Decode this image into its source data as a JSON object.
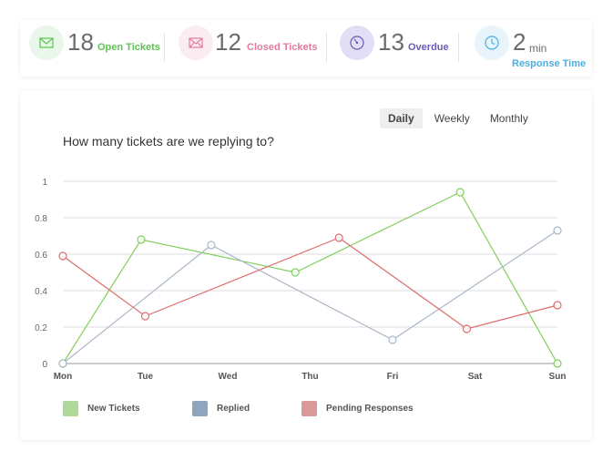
{
  "stats": [
    {
      "value": "18",
      "label": "Open Tickets",
      "icon": "envelope-open-icon",
      "color": "#5cc451",
      "bg": "#e9f6ea"
    },
    {
      "value": "12",
      "label": "Closed Tickets",
      "icon": "envelope-icon",
      "color": "#e47aa0",
      "bg": "#fbecf1"
    },
    {
      "value": "13",
      "label": "Overdue",
      "icon": "speedometer-icon",
      "color": "#6a5bb5",
      "bg": "#e2def5"
    },
    {
      "value": "2",
      "unit": "min",
      "label": "Response Time",
      "icon": "clock-icon",
      "color": "#49aee3",
      "bg": "#e8f4fb"
    }
  ],
  "tabs": [
    "Daily",
    "Weekly",
    "Monthly"
  ],
  "active_tab": "Daily",
  "chart_data": {
    "type": "line",
    "title": "How many tickets are we replying to?",
    "categories": [
      "Mon",
      "Tue",
      "Wed",
      "Thu",
      "Fri",
      "Sat",
      "Sun"
    ],
    "ylim": [
      0,
      1
    ],
    "yticks": [
      "0",
      "0.2",
      "0.4",
      "0.6",
      "0.8",
      "1"
    ],
    "grid": true,
    "legend_position": "bottom-left",
    "series": [
      {
        "name": "New Tickets",
        "color": "#7fd05a",
        "swatch": "#afd89b",
        "points": [
          [
            0,
            0
          ],
          [
            0.95,
            0.68
          ],
          [
            2.82,
            0.5
          ],
          [
            4.82,
            0.94
          ],
          [
            6,
            0
          ]
        ]
      },
      {
        "name": "Replied",
        "color": "#a9b6c9",
        "swatch": "#8ea4bf",
        "points": [
          [
            0,
            0
          ],
          [
            1.8,
            0.65
          ],
          [
            4,
            0.13
          ],
          [
            6,
            0.73
          ]
        ]
      },
      {
        "name": "Pending Responses",
        "color": "#de6b6b",
        "swatch": "#d89a9a",
        "points": [
          [
            0,
            0.59
          ],
          [
            1,
            0.26
          ],
          [
            3.35,
            0.69
          ],
          [
            4.9,
            0.19
          ],
          [
            6,
            0.32
          ]
        ]
      }
    ]
  }
}
